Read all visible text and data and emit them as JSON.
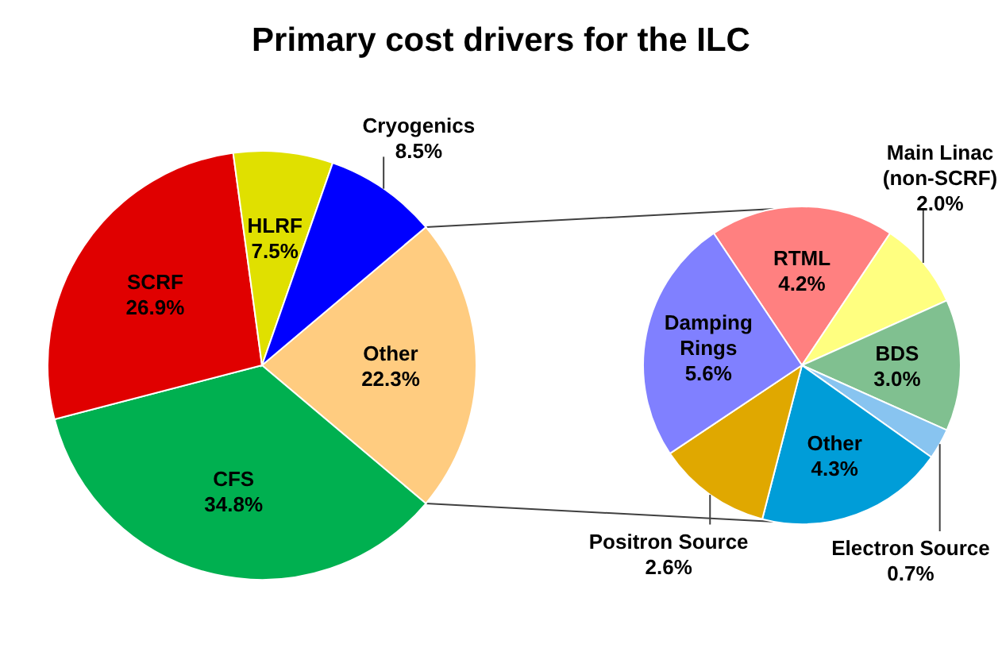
{
  "chart_data": [
    {
      "type": "pie",
      "title": "Primary cost drivers for the ILC",
      "categories": [
        "Other",
        "CFS",
        "SCRF",
        "HLRF",
        "Cryogenics"
      ],
      "values": [
        22.3,
        34.8,
        26.9,
        7.5,
        8.5
      ],
      "colors": [
        "#ffcc80",
        "#00b050",
        "#e00000",
        "#e0e000",
        "#0000ff"
      ],
      "value_labels": [
        "22.3%",
        "34.8%",
        "26.9%",
        "7.5%",
        "8.5%"
      ]
    },
    {
      "type": "pie",
      "categories": [
        "RTML",
        "Main Linac (non-SCRF)",
        "BDS",
        "Electron Source",
        "Other",
        "Positron Source",
        "Damping Rings"
      ],
      "values": [
        4.2,
        2.0,
        3.0,
        0.7,
        4.3,
        2.6,
        5.6
      ],
      "colors": [
        "#ff8080",
        "#ffff80",
        "#80c090",
        "#88c4f0",
        "#009dd8",
        "#e0a800",
        "#8080ff"
      ],
      "value_labels": [
        "4.2%",
        "2.0%",
        "3.0%",
        "0.7%",
        "4.3%",
        "2.6%",
        "5.6%"
      ]
    }
  ]
}
